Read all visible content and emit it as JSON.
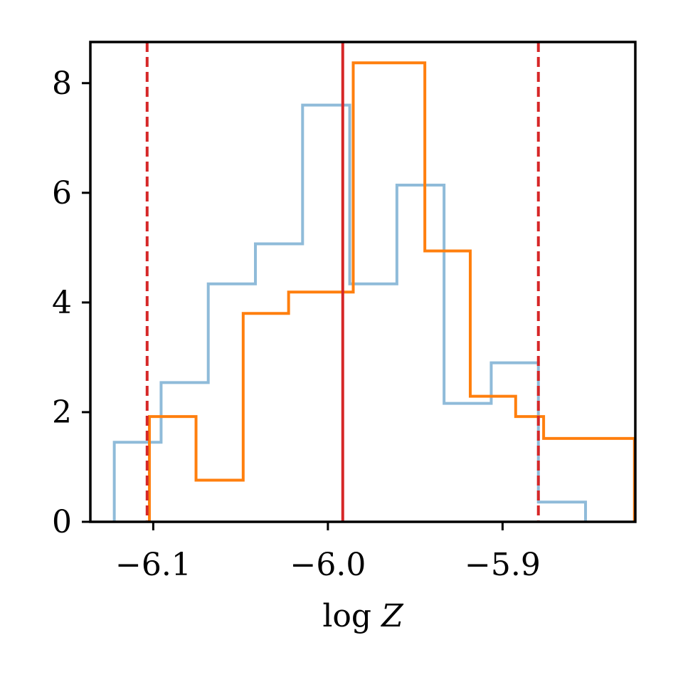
{
  "chart_data": {
    "type": "histogram-step",
    "title": "",
    "xlabel": "log Z",
    "ylabel": "",
    "xlim": [
      -6.136,
      -5.824
    ],
    "ylim": [
      0,
      8.75
    ],
    "x_ticks": [
      {
        "value": -6.1,
        "label": "−6.1"
      },
      {
        "value": -6.0,
        "label": "−6.0"
      },
      {
        "value": -5.9,
        "label": "−5.9"
      }
    ],
    "y_ticks": [
      {
        "value": 0,
        "label": "0"
      },
      {
        "value": 2,
        "label": "2"
      },
      {
        "value": 4,
        "label": "4"
      },
      {
        "value": 6,
        "label": "6"
      },
      {
        "value": 8,
        "label": "8"
      }
    ],
    "series": [
      {
        "color": "#8fbbd9",
        "bin_edges": [
          -6.1223,
          -6.0955,
          -6.0685,
          -6.0415,
          -6.0145,
          -5.9875,
          -5.9605,
          -5.9335,
          -5.9065,
          -5.8795,
          -5.8525
        ],
        "values": [
          1.45,
          2.54,
          4.34,
          5.07,
          7.6,
          4.34,
          6.14,
          2.16,
          2.9,
          0.36
        ]
      },
      {
        "color": "#ff7f0e",
        "bin_edges": [
          -6.1022,
          -6.0755,
          -6.0485,
          -6.0225,
          -6.0125,
          -5.9855,
          -5.9445,
          -5.9185,
          -5.8925,
          -5.8765,
          -5.8505,
          -5.8245
        ],
        "values": [
          1.92,
          0.76,
          3.8,
          4.19,
          4.19,
          8.37,
          4.94,
          2.29,
          1.92,
          1.52,
          1.52
        ]
      }
    ],
    "vlines": [
      {
        "x": -5.9915,
        "style": "solid",
        "color": "#d62728"
      },
      {
        "x": -6.1035,
        "style": "dashed",
        "color": "#d62728"
      },
      {
        "x": -5.8795,
        "style": "dashed",
        "color": "#d62728"
      }
    ]
  }
}
